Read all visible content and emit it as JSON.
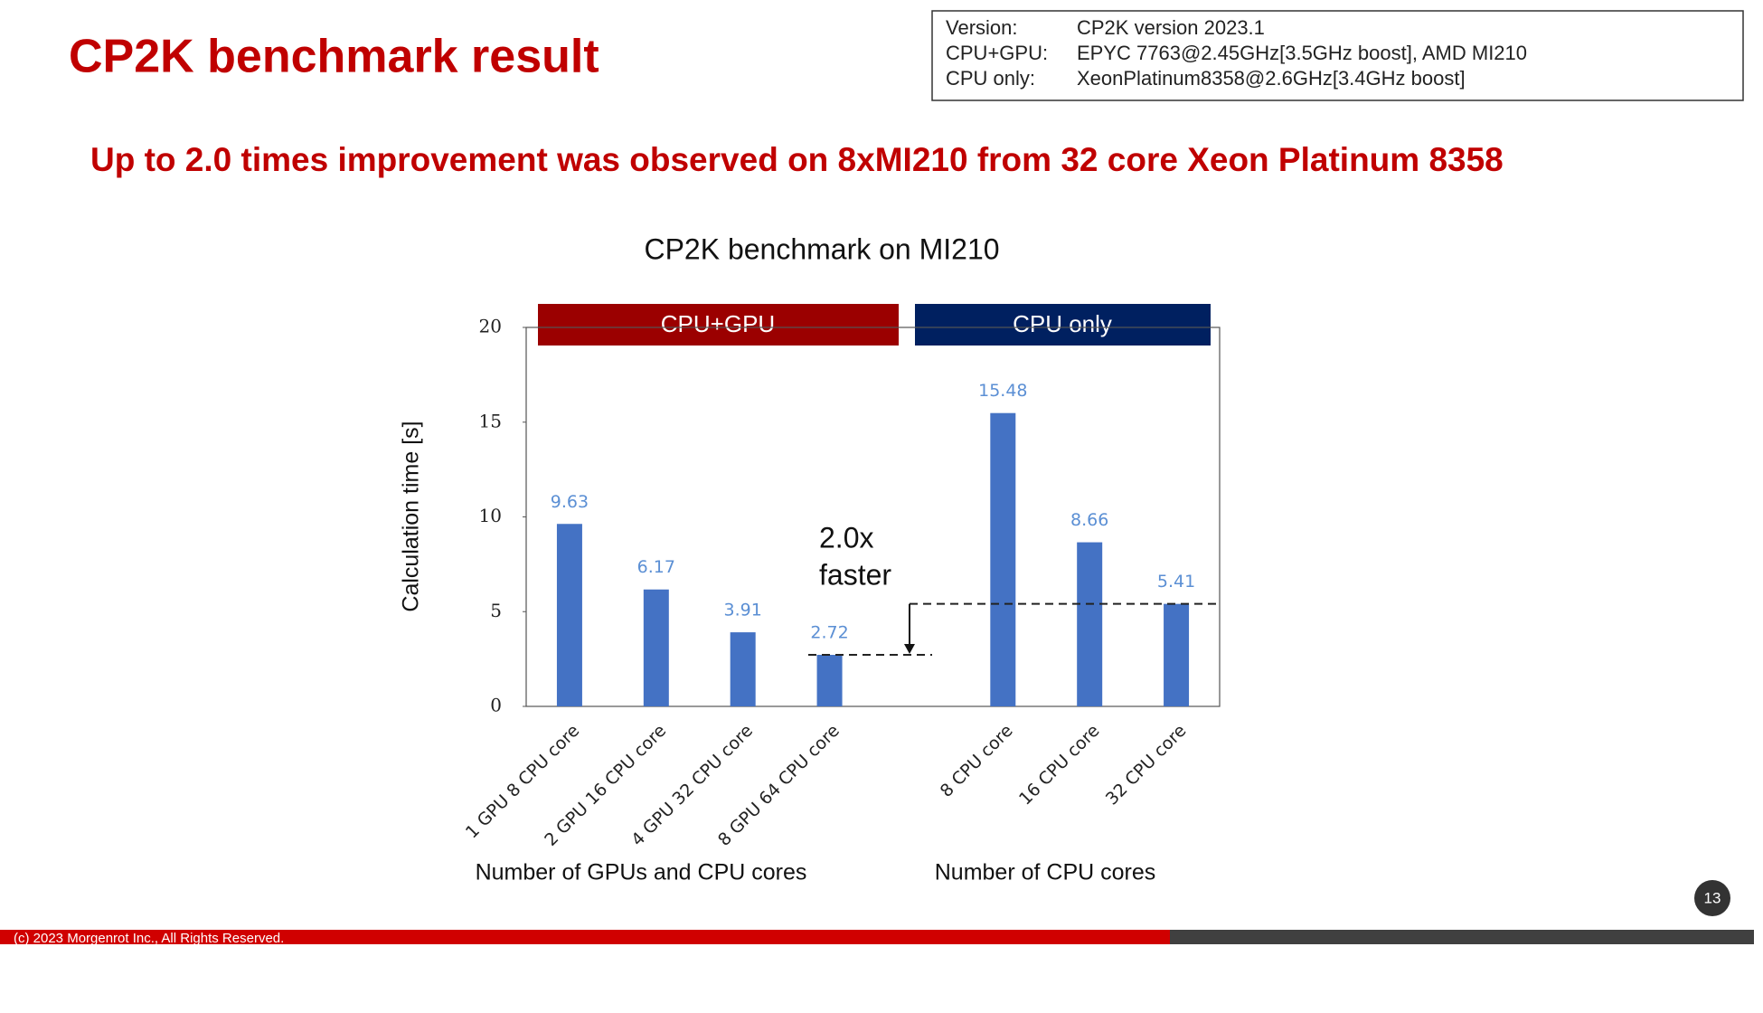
{
  "slide": {
    "title": "CP2K benchmark result",
    "headline": "Up to 2.0 times improvement was observed on 8xMI210 from 32 core Xeon Platinum 8358",
    "info": [
      {
        "label": "Version:",
        "value": "CP2K version 2023.1"
      },
      {
        "label": "CPU+GPU:",
        "value": "EPYC 7763@2.45GHz[3.5GHz boost], AMD MI210"
      },
      {
        "label": "CPU only:",
        "value": "XeonPlatinum8358@2.6GHz[3.4GHz boost]"
      }
    ],
    "footer": "(c) 2023 Morgenrot Inc., All Rights Reserved.",
    "page_number": "13"
  },
  "chart_data": {
    "type": "bar",
    "title": "CP2K benchmark on MI210",
    "y_label": "Calculation time [s]",
    "groups": [
      {
        "name": "CPU+GPU",
        "x_label": "Number of GPUs and CPU cores"
      },
      {
        "name": "CPU only",
        "x_label": "Number of CPU cores"
      }
    ],
    "categories": [
      "1 GPU 8 CPU core",
      "2 GPU 16 CPU core",
      "4 GPU 32 CPU core",
      "8 GPU 64 CPU core",
      null,
      "8 CPU core",
      "16 CPU core",
      "32 CPU core"
    ],
    "values": [
      9.63,
      6.17,
      3.91,
      2.72,
      null,
      15.48,
      8.66,
      5.41
    ],
    "color": "#4472c4",
    "ylim": [
      0,
      20
    ],
    "yticks": [
      0,
      5,
      10,
      15,
      20
    ],
    "annotation": [
      "2.0x",
      "faster"
    ]
  }
}
